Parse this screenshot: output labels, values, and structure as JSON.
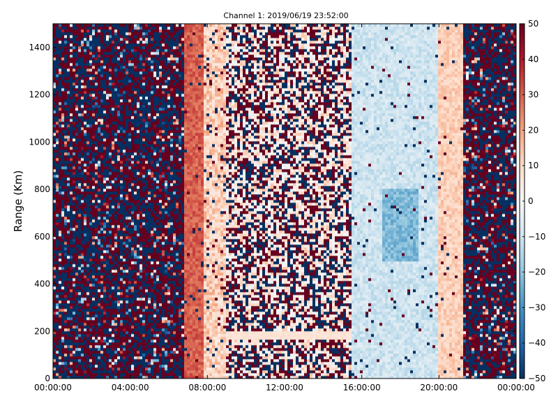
{
  "chart_data": {
    "type": "heatmap",
    "title": "Channel 1: 2019/06/19 23:52:00",
    "xlabel": "",
    "ylabel": "Range (Km)",
    "x_ticks": [
      "00:00:00",
      "04:00:00",
      "08:00:00",
      "12:00:00",
      "16:00:00",
      "20:00:00",
      "00:00:00"
    ],
    "x_tick_hours": [
      0,
      4,
      8,
      12,
      16,
      20,
      24
    ],
    "xlim_hours": [
      0,
      24
    ],
    "y_ticks": [
      0,
      200,
      400,
      600,
      800,
      1000,
      1200,
      1400
    ],
    "ylim": [
      0,
      1500
    ],
    "colorbar": {
      "colormap": "RdBu_r",
      "range": [
        -50,
        50
      ],
      "ticks": [
        50,
        40,
        30,
        20,
        10,
        0,
        -10,
        -20,
        -30,
        -40,
        -50
      ],
      "ticklabels": [
        "50",
        "40",
        "30",
        "20",
        "10",
        "0",
        "−10",
        "−20",
        "−30",
        "−40",
        "−50"
      ],
      "colors": [
        "#053061",
        "#2166ac",
        "#4393c3",
        "#92c5de",
        "#d1e5f0",
        "#f7f7f7",
        "#fddbc7",
        "#f4a582",
        "#d6604d",
        "#b2182b",
        "#67001f"
      ]
    },
    "grid": false,
    "bands": [
      {
        "from_hour": 0.0,
        "to_hour": 6.8,
        "pattern": "noise",
        "description_level": "saturated +/-50"
      },
      {
        "from_hour": 6.8,
        "to_hour": 7.8,
        "pattern": "smooth",
        "mean_value": 30
      },
      {
        "from_hour": 7.8,
        "to_hour": 9.0,
        "pattern": "smooth-noisy",
        "mean_value": 12
      },
      {
        "from_hour": 9.0,
        "to_hour": 15.5,
        "pattern": "sparse-noise",
        "mean_value": 5
      },
      {
        "from_hour": 15.5,
        "to_hour": 20.0,
        "pattern": "smooth",
        "mean_value": -10
      },
      {
        "from_hour": 20.0,
        "to_hour": 21.2,
        "pattern": "smooth",
        "mean_value": 12
      },
      {
        "from_hour": 21.2,
        "to_hour": 24.0,
        "pattern": "noise",
        "description_level": "saturated +/-50"
      }
    ]
  }
}
